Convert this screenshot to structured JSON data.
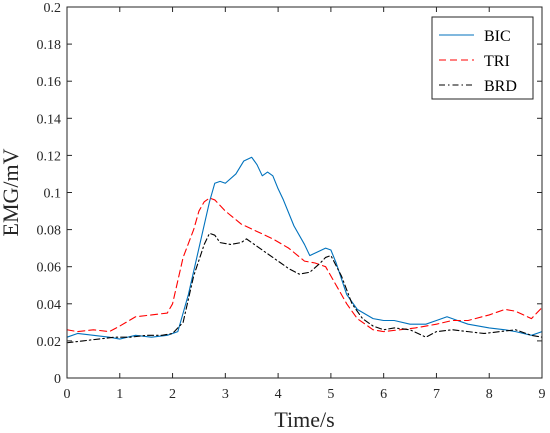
{
  "chart_data": {
    "type": "line",
    "xlabel": "Time/s",
    "ylabel": "EMG/mV",
    "xlim": [
      0,
      9
    ],
    "ylim": [
      0,
      0.2
    ],
    "xticks": [
      0,
      1,
      2,
      3,
      4,
      5,
      6,
      7,
      8,
      9
    ],
    "yticks": [
      0,
      0.02,
      0.04,
      0.06,
      0.08,
      0.1,
      0.12,
      0.14,
      0.16,
      0.18,
      0.2
    ],
    "xtick_labels": [
      "0",
      "1",
      "2",
      "3",
      "4",
      "5",
      "6",
      "7",
      "8",
      "9"
    ],
    "ytick_labels": [
      "0",
      "0.02",
      "0.04",
      "0.06",
      "0.08",
      "0.1",
      "0.12",
      "0.14",
      "0.16",
      "0.18",
      "0.2"
    ],
    "grid": false,
    "legend_position": "top-right",
    "series": [
      {
        "name": "BIC",
        "color": "#0072BD",
        "dash": "solid",
        "x": [
          0,
          0.2,
          0.5,
          0.8,
          1.0,
          1.3,
          1.6,
          1.9,
          2.1,
          2.3,
          2.5,
          2.7,
          2.8,
          2.9,
          3.0,
          3.2,
          3.35,
          3.5,
          3.6,
          3.7,
          3.8,
          3.9,
          4.0,
          4.1,
          4.3,
          4.5,
          4.6,
          4.75,
          4.9,
          5.0,
          5.1,
          5.3,
          5.5,
          5.8,
          6.0,
          6.2,
          6.5,
          6.8,
          7.0,
          7.2,
          7.4,
          7.6,
          7.8,
          8.0,
          8.3,
          8.5,
          8.8,
          9.0
        ],
        "y": [
          0.022,
          0.024,
          0.023,
          0.022,
          0.021,
          0.023,
          0.022,
          0.023,
          0.025,
          0.045,
          0.07,
          0.095,
          0.105,
          0.106,
          0.105,
          0.11,
          0.117,
          0.119,
          0.115,
          0.109,
          0.111,
          0.109,
          0.102,
          0.096,
          0.082,
          0.072,
          0.066,
          0.068,
          0.07,
          0.069,
          0.062,
          0.045,
          0.037,
          0.032,
          0.031,
          0.031,
          0.029,
          0.029,
          0.031,
          0.033,
          0.031,
          0.029,
          0.028,
          0.027,
          0.026,
          0.025,
          0.023,
          0.025
        ]
      },
      {
        "name": "TRI",
        "color": "#FF0000",
        "dash": "dashed",
        "x": [
          0,
          0.2,
          0.5,
          0.8,
          1.0,
          1.3,
          1.6,
          1.9,
          2.0,
          2.2,
          2.4,
          2.5,
          2.6,
          2.7,
          2.8,
          3.0,
          3.3,
          3.6,
          3.9,
          4.2,
          4.5,
          4.7,
          4.9,
          5.1,
          5.3,
          5.5,
          5.8,
          6.0,
          6.3,
          6.6,
          7.0,
          7.3,
          7.6,
          8.0,
          8.3,
          8.5,
          8.8,
          9.0
        ],
        "y": [
          0.026,
          0.025,
          0.026,
          0.025,
          0.028,
          0.033,
          0.034,
          0.035,
          0.04,
          0.065,
          0.08,
          0.09,
          0.095,
          0.097,
          0.096,
          0.09,
          0.083,
          0.079,
          0.075,
          0.07,
          0.063,
          0.062,
          0.06,
          0.05,
          0.04,
          0.032,
          0.026,
          0.025,
          0.026,
          0.027,
          0.029,
          0.031,
          0.031,
          0.034,
          0.037,
          0.036,
          0.032,
          0.038
        ]
      },
      {
        "name": "BRD",
        "color": "#000000",
        "dash": "dashdot",
        "x": [
          0,
          0.3,
          0.6,
          0.9,
          1.2,
          1.5,
          1.8,
          2.0,
          2.2,
          2.4,
          2.6,
          2.7,
          2.8,
          2.9,
          3.1,
          3.3,
          3.4,
          3.6,
          3.8,
          4.0,
          4.2,
          4.4,
          4.6,
          4.8,
          4.9,
          5.0,
          5.2,
          5.4,
          5.6,
          5.8,
          6.0,
          6.2,
          6.5,
          6.8,
          7.0,
          7.3,
          7.6,
          7.9,
          8.2,
          8.5,
          8.8,
          9.0
        ],
        "y": [
          0.019,
          0.02,
          0.021,
          0.022,
          0.022,
          0.023,
          0.023,
          0.024,
          0.03,
          0.055,
          0.072,
          0.078,
          0.077,
          0.073,
          0.072,
          0.073,
          0.075,
          0.071,
          0.067,
          0.063,
          0.059,
          0.056,
          0.057,
          0.062,
          0.065,
          0.066,
          0.055,
          0.04,
          0.032,
          0.028,
          0.026,
          0.027,
          0.026,
          0.022,
          0.025,
          0.026,
          0.025,
          0.024,
          0.025,
          0.026,
          0.023,
          0.022
        ]
      }
    ]
  }
}
